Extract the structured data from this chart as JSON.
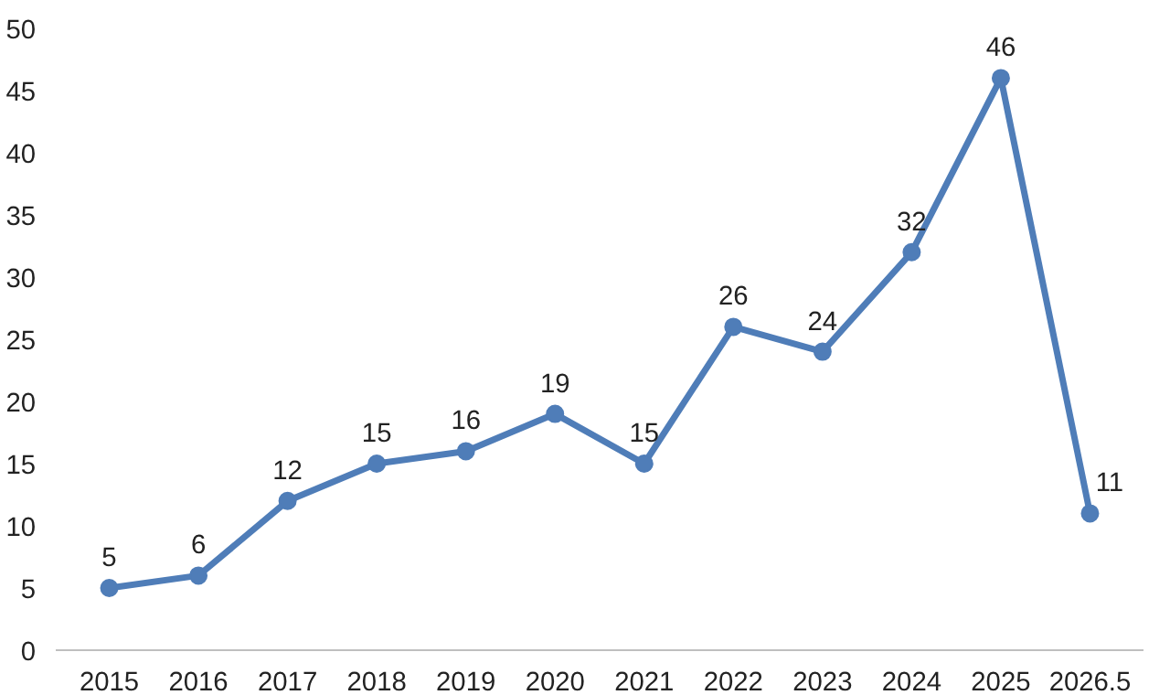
{
  "chart_data": {
    "type": "line",
    "categories": [
      "2015",
      "2016",
      "2017",
      "2018",
      "2019",
      "2020",
      "2021",
      "2022",
      "2023",
      "2024",
      "2025",
      "2026.5"
    ],
    "series": [
      {
        "color": "#4f7db8",
        "values": [
          5,
          6,
          12,
          15,
          16,
          19,
          15,
          26,
          24,
          32,
          46,
          11
        ]
      }
    ],
    "ylim": [
      0,
      50
    ],
    "yticks": [
      0,
      5,
      10,
      15,
      20,
      25,
      30,
      35,
      40,
      45,
      50
    ],
    "grid": false,
    "marker": "circle",
    "line_style": "solid",
    "data_labels": true
  }
}
